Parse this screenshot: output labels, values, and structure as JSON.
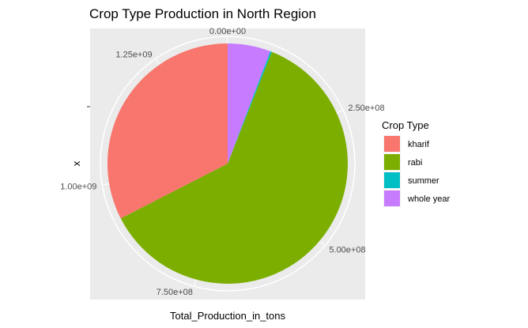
{
  "chart_data": {
    "type": "pie",
    "title": "Crop Type Production in North Region",
    "xlabel": "Total_Production_in_tons",
    "ylabel": "x",
    "categories": [
      "whole year",
      "summer",
      "rabi",
      "kharif"
    ],
    "values": [
      80000000,
      3000000,
      850000000,
      450000000
    ],
    "colors": [
      "#C77CFF",
      "#00BFC4",
      "#7CAE00",
      "#F8766D"
    ],
    "radial_ticks": [
      {
        "value": 0,
        "label": "0.00e+00"
      },
      {
        "value": 250000000,
        "label": "2.50e+08"
      },
      {
        "value": 500000000,
        "label": "5.00e+08"
      },
      {
        "value": 750000000,
        "label": "7.50e+08"
      },
      {
        "value": 1000000000,
        "label": "1.00e+09"
      },
      {
        "value": 1250000000,
        "label": "1.25e+09"
      }
    ],
    "legend": {
      "title": "Crop Type",
      "position": "right",
      "entries": [
        "kharif",
        "rabi",
        "summer",
        "whole year"
      ]
    },
    "grid": true
  }
}
